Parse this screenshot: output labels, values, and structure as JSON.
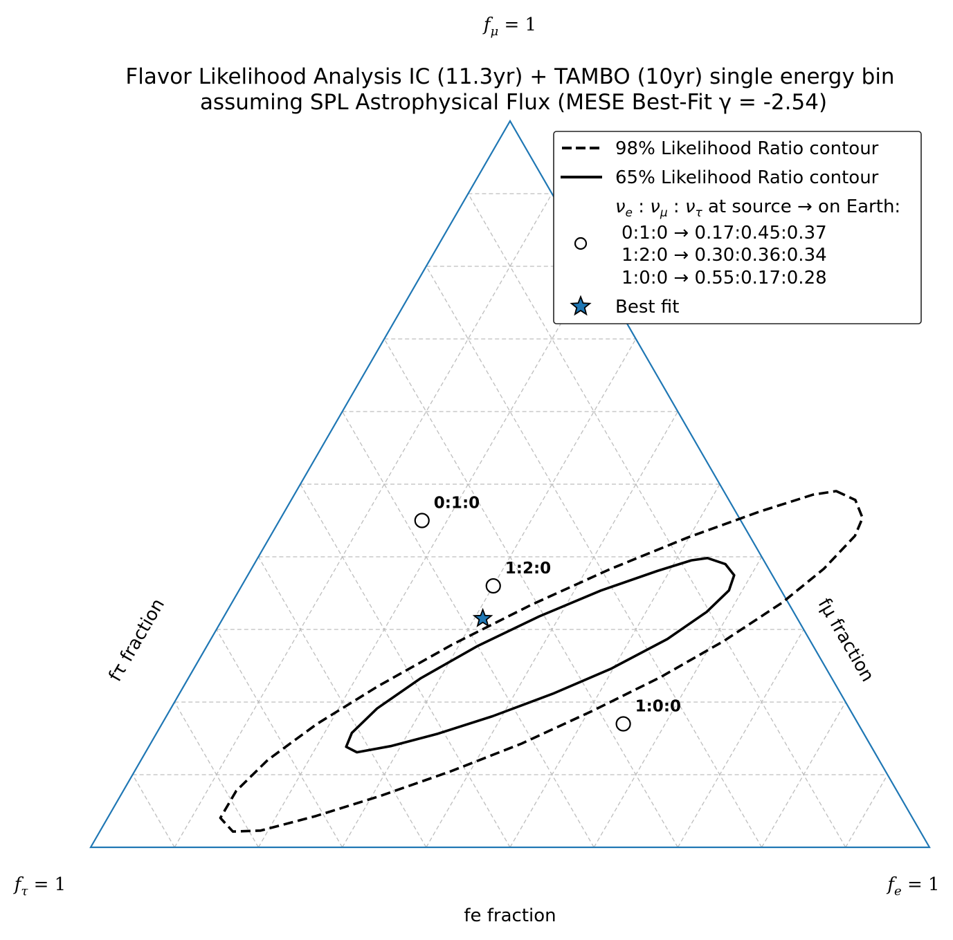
{
  "chart_data": {
    "type": "scatter",
    "subtype": "ternary",
    "title": [
      "Flavor Likelihood Analysis IC (11.3yr) + TAMBO (10yr) single energy bin",
      "assuming SPL Astrophysical Flux (MESE Best-Fit γ = -2.54)"
    ],
    "axes": {
      "bottom_label": "fe fraction",
      "left_label": "fτ fraction",
      "right_label": "fμ fraction",
      "corners": {
        "top": {
          "var": "f",
          "sub": "μ",
          "rest": " = 1"
        },
        "left": {
          "var": "f",
          "sub": "τ",
          "rest": " = 1"
        },
        "right": {
          "var": "f",
          "sub": "e",
          "rest": " = 1"
        }
      },
      "range": [
        0,
        1
      ],
      "grid": true,
      "grid_step": 0.1
    },
    "points": [
      {
        "label": "0:1:0",
        "fe": 0.17,
        "fmu": 0.45,
        "ftau": 0.37
      },
      {
        "label": "1:2:0",
        "fe": 0.3,
        "fmu": 0.36,
        "ftau": 0.34
      },
      {
        "label": "1:0:0",
        "fe": 0.55,
        "fmu": 0.17,
        "ftau": 0.28
      }
    ],
    "best_fit": {
      "fe": 0.31,
      "fmu": 0.315,
      "ftau": 0.375
    },
    "contours": [
      {
        "name": "98% Likelihood Ratio contour",
        "style": "dashed",
        "points": [
          [
            0.6435,
            0.4905
          ],
          [
            0.6725,
            0.4782
          ],
          [
            0.6935,
            0.4535
          ],
          [
            0.6967,
            0.4288
          ],
          [
            0.6823,
            0.3834
          ],
          [
            0.6559,
            0.3369
          ],
          [
            0.6127,
            0.2839
          ],
          [
            0.5626,
            0.2346
          ],
          [
            0.5045,
            0.188
          ],
          [
            0.4424,
            0.1429
          ],
          [
            0.377,
            0.1047
          ],
          [
            0.3091,
            0.0704
          ],
          [
            0.2471,
            0.0431
          ],
          [
            0.1912,
            0.023
          ],
          [
            0.1587,
            0.0217
          ],
          [
            0.1344,
            0.0405
          ],
          [
            0.1347,
            0.0778
          ],
          [
            0.151,
            0.1203
          ],
          [
            0.1847,
            0.1697
          ],
          [
            0.2317,
            0.2218
          ],
          [
            0.2917,
            0.2793
          ],
          [
            0.3582,
            0.3338
          ],
          [
            0.428,
            0.3832
          ],
          [
            0.4991,
            0.427
          ],
          [
            0.5658,
            0.462
          ],
          [
            0.6183,
            0.4855
          ]
        ]
      },
      {
        "name": "65% Likelihood Ratio contour",
        "style": "solid",
        "points": [
          [
            0.5362,
            0.3983
          ],
          [
            0.5618,
            0.3899
          ],
          [
            0.5798,
            0.3747
          ],
          [
            0.5841,
            0.3537
          ],
          [
            0.5722,
            0.324
          ],
          [
            0.5441,
            0.2868
          ],
          [
            0.4974,
            0.2459
          ],
          [
            0.445,
            0.2113
          ],
          [
            0.3888,
            0.1805
          ],
          [
            0.3358,
            0.1565
          ],
          [
            0.288,
            0.1393
          ],
          [
            0.252,
            0.1309
          ],
          [
            0.2354,
            0.1384
          ],
          [
            0.2326,
            0.1575
          ],
          [
            0.2459,
            0.1911
          ],
          [
            0.2772,
            0.233
          ],
          [
            0.3229,
            0.2774
          ],
          [
            0.3758,
            0.318
          ],
          [
            0.4314,
            0.3535
          ],
          [
            0.4852,
            0.3805
          ],
          [
            0.5186,
            0.3951
          ]
        ]
      }
    ],
    "legend": {
      "position": "top-right",
      "dashed": "98% Likelihood Ratio contour",
      "solid": "65% Likelihood Ratio contour",
      "source_header": {
        "nu": "ν",
        "e": "e",
        "mu": "μ",
        "tau": "τ",
        "text": " at source → on Earth:"
      },
      "source_lines": [
        "0:1:0 → 0.17:0.45:0.37",
        "1:2:0 → 0.30:0.36:0.34",
        "1:0:0 → 0.55:0.17:0.28"
      ],
      "best_fit": "Best fit"
    },
    "colors": {
      "frame": "#1f77b4",
      "grid": "#bdbdbd",
      "best_fit_star": "#1f77b4",
      "contour": "#000000"
    }
  }
}
